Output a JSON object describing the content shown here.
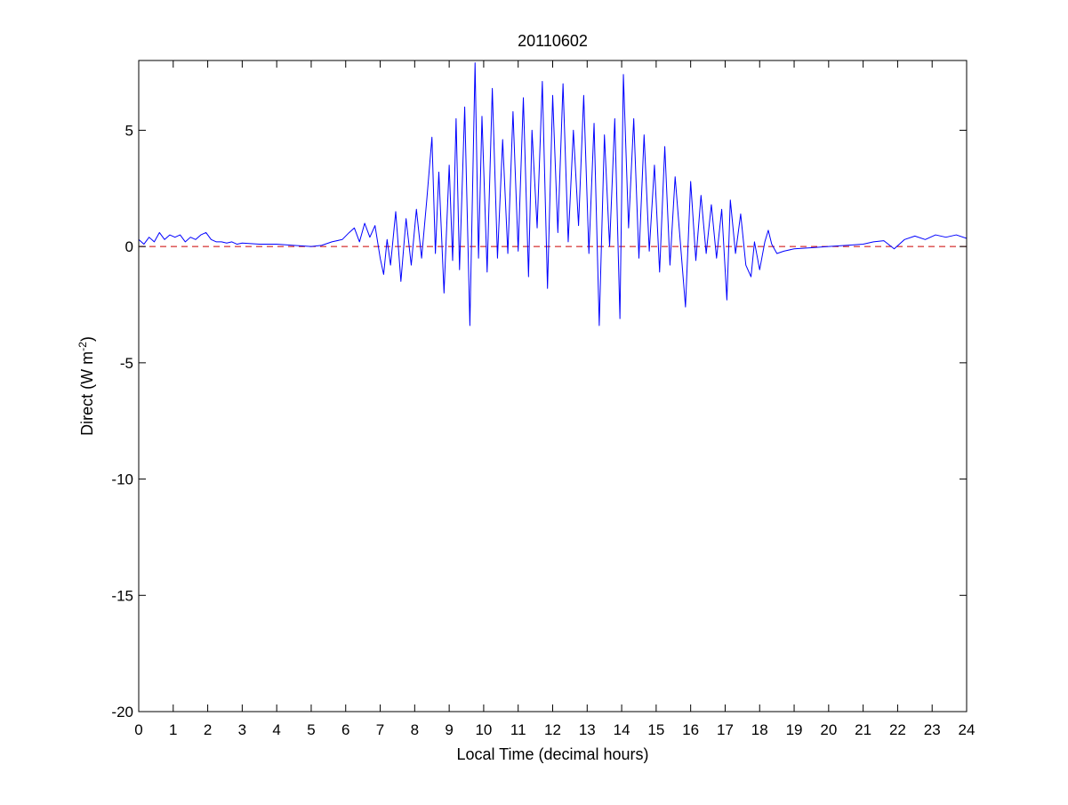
{
  "chart_data": {
    "type": "line",
    "title": "20110602",
    "xlabel": "Local Time (decimal hours)",
    "ylabel_main": "Direct (W m",
    "ylabel_sup": "-2",
    "ylabel_close": ")",
    "xlim": [
      0,
      24
    ],
    "ylim": [
      -20,
      8
    ],
    "xticks": [
      0,
      1,
      2,
      3,
      4,
      5,
      6,
      7,
      8,
      9,
      10,
      11,
      12,
      13,
      14,
      15,
      16,
      17,
      18,
      19,
      20,
      21,
      22,
      23,
      24
    ],
    "yticks": [
      5,
      0,
      -5,
      -10,
      -15,
      -20
    ],
    "grid": false,
    "reference_line": {
      "y": 0,
      "style": "dashed",
      "color": "#cc0000"
    },
    "series": [
      {
        "color": "#0000ff",
        "x": [
          0.0,
          0.15,
          0.3,
          0.45,
          0.6,
          0.75,
          0.9,
          1.05,
          1.2,
          1.35,
          1.5,
          1.65,
          1.8,
          1.95,
          2.1,
          2.25,
          2.4,
          2.55,
          2.7,
          2.85,
          3.0,
          3.5,
          4.0,
          4.5,
          5.0,
          5.3,
          5.6,
          5.9,
          6.1,
          6.25,
          6.4,
          6.55,
          6.7,
          6.85,
          7.0,
          7.1,
          7.2,
          7.3,
          7.45,
          7.6,
          7.75,
          7.9,
          8.05,
          8.2,
          8.35,
          8.5,
          8.6,
          8.7,
          8.85,
          9.0,
          9.1,
          9.2,
          9.3,
          9.45,
          9.6,
          9.75,
          9.85,
          9.95,
          10.1,
          10.25,
          10.4,
          10.55,
          10.7,
          10.85,
          11.0,
          11.15,
          11.3,
          11.4,
          11.55,
          11.7,
          11.85,
          12.0,
          12.15,
          12.3,
          12.45,
          12.6,
          12.75,
          12.9,
          13.05,
          13.2,
          13.35,
          13.5,
          13.65,
          13.8,
          13.95,
          14.05,
          14.2,
          14.35,
          14.5,
          14.65,
          14.8,
          14.95,
          15.1,
          15.25,
          15.4,
          15.55,
          15.7,
          15.85,
          16.0,
          16.15,
          16.3,
          16.45,
          16.6,
          16.75,
          16.9,
          17.05,
          17.15,
          17.3,
          17.45,
          17.6,
          17.75,
          17.85,
          18.0,
          18.15,
          18.25,
          18.35,
          18.5,
          18.7,
          19.0,
          19.5,
          20.0,
          20.5,
          21.0,
          21.3,
          21.6,
          21.9,
          22.2,
          22.5,
          22.8,
          23.1,
          23.4,
          23.7,
          24.0
        ],
        "y": [
          0.3,
          0.1,
          0.4,
          0.2,
          0.6,
          0.3,
          0.5,
          0.4,
          0.5,
          0.2,
          0.4,
          0.3,
          0.5,
          0.6,
          0.3,
          0.2,
          0.2,
          0.15,
          0.2,
          0.1,
          0.15,
          0.1,
          0.1,
          0.05,
          0.0,
          0.05,
          0.2,
          0.3,
          0.6,
          0.8,
          0.2,
          1.0,
          0.4,
          0.9,
          -0.5,
          -1.2,
          0.3,
          -0.8,
          1.5,
          -1.5,
          1.2,
          -0.8,
          1.6,
          -0.5,
          2.0,
          4.7,
          -0.3,
          3.2,
          -2.0,
          3.5,
          -0.6,
          5.5,
          -1.0,
          6.0,
          -3.4,
          7.9,
          -0.5,
          5.6,
          -1.1,
          6.8,
          -0.5,
          4.6,
          -0.3,
          5.8,
          -0.2,
          6.4,
          -1.3,
          5.0,
          0.8,
          7.1,
          -1.8,
          6.5,
          0.6,
          7.0,
          0.2,
          5.0,
          0.9,
          6.5,
          -0.3,
          5.3,
          -3.4,
          4.8,
          0.0,
          5.5,
          -3.1,
          7.4,
          0.8,
          5.5,
          -0.5,
          4.8,
          -0.2,
          3.5,
          -1.1,
          4.3,
          -0.8,
          3.0,
          0.2,
          -2.6,
          2.8,
          -0.6,
          2.2,
          -0.3,
          1.8,
          -0.5,
          1.6,
          -2.3,
          2.0,
          -0.3,
          1.4,
          -0.8,
          -1.3,
          0.2,
          -1.0,
          0.2,
          0.7,
          0.1,
          -0.3,
          -0.2,
          -0.1,
          -0.05,
          0.0,
          0.05,
          0.1,
          0.2,
          0.25,
          -0.1,
          0.3,
          0.45,
          0.3,
          0.5,
          0.4,
          0.5,
          0.35
        ]
      }
    ]
  }
}
